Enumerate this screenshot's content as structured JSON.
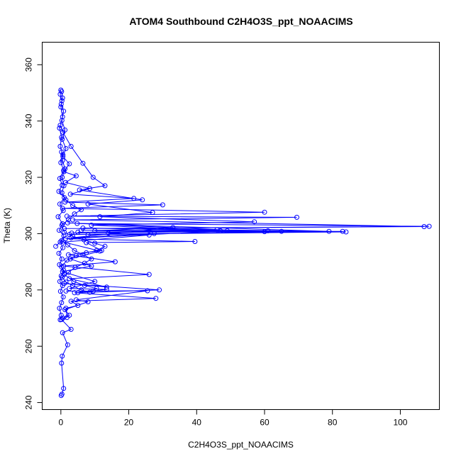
{
  "chart_data": {
    "type": "line",
    "title": "ATOM4 Southbound C2H4O3S_ppt_NOAACIMS",
    "xlabel": "C2H4O3S_ppt_NOAACIMS",
    "ylabel": "Theta (K)",
    "xlim": [
      -5.5,
      111.5
    ],
    "ylim": [
      237.5,
      368
    ],
    "xticks": [
      0,
      20,
      40,
      60,
      80,
      100
    ],
    "yticks": [
      240,
      260,
      280,
      300,
      320,
      340,
      360
    ],
    "grid": false,
    "series_color": "#0000ff",
    "markers": "open-circle",
    "series": [
      {
        "points": [
          [
            0.2,
            350.5
          ],
          [
            0.5,
            348.2
          ],
          [
            0.1,
            346.0
          ],
          [
            0.8,
            343.5
          ],
          [
            0.3,
            340.2
          ],
          [
            1.2,
            336.8
          ],
          [
            0.4,
            333.5
          ],
          [
            1.5,
            330.2
          ],
          [
            0.6,
            327.4
          ],
          [
            2.5,
            324.8
          ],
          [
            0.9,
            322.0
          ],
          [
            4.5,
            320.5
          ],
          [
            1.4,
            318.2
          ],
          [
            8.5,
            316.0
          ],
          [
            2.8,
            314.0
          ],
          [
            21.5,
            312.5
          ],
          [
            1.2,
            311.2
          ],
          [
            30.0,
            310.2
          ],
          [
            0.5,
            309.0
          ],
          [
            60.0,
            307.6
          ],
          [
            1.8,
            306.2
          ],
          [
            69.5,
            305.8
          ],
          [
            3.5,
            304.9
          ],
          [
            107.0,
            302.5
          ],
          [
            1.0,
            301.8
          ],
          [
            108.5,
            302.6
          ],
          [
            4.8,
            303.6
          ],
          [
            84.0,
            300.6
          ],
          [
            2.5,
            299.7
          ],
          [
            83.0,
            300.8
          ],
          [
            6.0,
            301.2
          ],
          [
            61.0,
            301.0
          ],
          [
            3.2,
            300.2
          ],
          [
            49.0,
            301.0
          ],
          [
            1.4,
            298.2
          ],
          [
            39.5,
            297.2
          ],
          [
            7.5,
            296.8
          ],
          [
            12.0,
            294.0
          ],
          [
            2.2,
            292.5
          ],
          [
            16.0,
            290.0
          ],
          [
            0.8,
            288.5
          ],
          [
            26.0,
            285.5
          ],
          [
            2.5,
            284.0
          ],
          [
            13.5,
            281.0
          ],
          [
            1.0,
            282.3
          ],
          [
            29.0,
            280.0
          ],
          [
            4.0,
            279.0
          ],
          [
            28.0,
            277.0
          ],
          [
            3.0,
            276.0
          ],
          [
            5.0,
            274.5
          ],
          [
            1.5,
            273.5
          ],
          [
            1.8,
            270.2
          ],
          [
            0.2,
            269.5
          ],
          [
            3.0,
            266.0
          ],
          [
            0.5,
            264.8
          ],
          [
            2.0,
            260.5
          ],
          [
            0.4,
            256.5
          ],
          [
            0.2,
            254.0
          ],
          [
            0.8,
            245.0
          ],
          [
            0.3,
            243.0
          ],
          [
            0.1,
            242.5
          ]
        ]
      },
      {
        "points": [
          [
            -0.2,
            338.5
          ],
          [
            0.6,
            336.0
          ],
          [
            3.0,
            331.0
          ],
          [
            6.5,
            325.0
          ],
          [
            9.5,
            320.0
          ],
          [
            13.0,
            317.0
          ],
          [
            5.5,
            315.5
          ],
          [
            24.0,
            312.0
          ],
          [
            8.0,
            310.5
          ],
          [
            27.0,
            307.5
          ],
          [
            11.5,
            306.0
          ],
          [
            57.0,
            304.2
          ],
          [
            9.0,
            303.0
          ],
          [
            47.0,
            301.0
          ],
          [
            5.0,
            300.5
          ],
          [
            65.0,
            300.8
          ],
          [
            8.0,
            299.6
          ],
          [
            27.5,
            300.0
          ],
          [
            3.0,
            298.5
          ],
          [
            33.0,
            302.2
          ],
          [
            10.0,
            301.0
          ],
          [
            79.0,
            300.8
          ],
          [
            6.5,
            302.0
          ],
          [
            60.0,
            300.7
          ],
          [
            2.0,
            303.8
          ],
          [
            46.0,
            301.4
          ],
          [
            14.0,
            300.2
          ],
          [
            26.0,
            299.5
          ],
          [
            0.8,
            297.0
          ],
          [
            11.5,
            293.8
          ],
          [
            2.8,
            291.0
          ],
          [
            9.0,
            288.5
          ],
          [
            0.5,
            286.5
          ],
          [
            10.0,
            283.0
          ],
          [
            2.5,
            280.5
          ],
          [
            13.5,
            280.2
          ],
          [
            5.0,
            279.0
          ],
          [
            9.5,
            279.5
          ],
          [
            1.5,
            279.6
          ],
          [
            25.5,
            279.7
          ],
          [
            4.5,
            276.5
          ],
          [
            8.0,
            275.8
          ],
          [
            1.2,
            273.0
          ],
          [
            2.5,
            271.0
          ],
          [
            0.6,
            270.0
          ]
        ]
      },
      {
        "points": [
          [
            -1.5,
            295.5
          ],
          [
            0.2,
            297.5
          ],
          [
            2.0,
            296.0
          ],
          [
            4.0,
            294.0
          ],
          [
            6.5,
            292.5
          ],
          [
            9.0,
            291.0
          ],
          [
            7.0,
            289.5
          ],
          [
            4.2,
            288.0
          ],
          [
            2.2,
            286.2
          ],
          [
            0.4,
            284.5
          ],
          [
            1.5,
            282.8
          ],
          [
            3.5,
            281.5
          ],
          [
            6.0,
            280.0
          ],
          [
            8.5,
            279.2
          ],
          [
            10.5,
            280.5
          ],
          [
            7.0,
            281.6
          ],
          [
            3.8,
            283.0
          ],
          [
            1.0,
            285.5
          ],
          [
            0.2,
            288.2
          ],
          [
            1.8,
            290.6
          ],
          [
            4.5,
            292.2
          ],
          [
            7.5,
            293.2
          ],
          [
            10.5,
            294.0
          ],
          [
            13.0,
            295.5
          ],
          [
            10.0,
            296.6
          ],
          [
            6.8,
            297.8
          ],
          [
            3.5,
            299.0
          ],
          [
            1.0,
            300.5
          ],
          [
            0.3,
            303.0
          ],
          [
            2.2,
            305.0
          ],
          [
            4.0,
            307.0
          ],
          [
            6.0,
            308.5
          ],
          [
            3.5,
            310.0
          ],
          [
            1.5,
            312.0
          ],
          [
            0.3,
            314.5
          ],
          [
            0.9,
            317.0
          ],
          [
            0.4,
            320.0
          ],
          [
            1.2,
            323.0
          ],
          [
            0.5,
            326.0
          ],
          [
            0.2,
            329.0
          ]
        ]
      },
      {
        "points": [
          [
            0.0,
            351.0
          ],
          [
            -0.2,
            349.5
          ],
          [
            0.3,
            347.2
          ],
          [
            0.0,
            345.0
          ],
          [
            0.5,
            341.5
          ],
          [
            -0.4,
            337.5
          ],
          [
            0.2,
            334.2
          ],
          [
            -0.2,
            331.0
          ],
          [
            0.6,
            328.0
          ],
          [
            0.0,
            325.2
          ],
          [
            0.8,
            322.5
          ],
          [
            -0.3,
            319.6
          ],
          [
            0.4,
            317.2
          ],
          [
            -0.6,
            315.0
          ],
          [
            1.0,
            312.8
          ],
          [
            -0.3,
            310.5
          ],
          [
            0.7,
            308.2
          ],
          [
            -0.8,
            306.0
          ],
          [
            0.5,
            303.5
          ],
          [
            -0.5,
            301.2
          ],
          [
            0.9,
            299.2
          ],
          [
            -0.2,
            297.0
          ],
          [
            0.6,
            295.0
          ],
          [
            -0.6,
            293.0
          ],
          [
            0.3,
            291.0
          ],
          [
            -0.4,
            289.0
          ],
          [
            0.8,
            287.0
          ],
          [
            0.1,
            285.0
          ],
          [
            -0.3,
            283.0
          ],
          [
            0.5,
            281.5
          ],
          [
            -0.1,
            279.5
          ],
          [
            0.7,
            277.5
          ],
          [
            0.2,
            275.5
          ],
          [
            -0.4,
            273.5
          ],
          [
            0.1,
            271.0
          ],
          [
            -0.2,
            269.4
          ]
        ]
      }
    ]
  }
}
